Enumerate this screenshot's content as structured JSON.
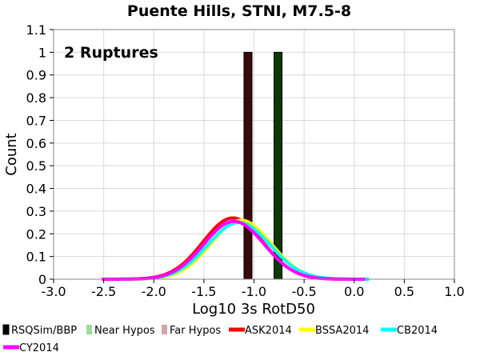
{
  "chart_data": {
    "type": "bar",
    "title": "Puente Hills, STNI, M7.5-8",
    "xlabel": "Log10 3s RotD50",
    "ylabel": "Count",
    "xlim": [
      -3.0,
      1.0
    ],
    "ylim": [
      0,
      1.1
    ],
    "x_ticks": [
      "-3.0",
      "-2.5",
      "-2.0",
      "-1.5",
      "-1.0",
      "-0.5",
      "0.0",
      "0.5",
      "1.0"
    ],
    "y_ticks": [
      "0",
      "0.1",
      "0.2",
      "0.3",
      "0.4",
      "0.5",
      "0.6",
      "0.7",
      "0.8",
      "0.9",
      "1",
      "1.1"
    ],
    "annotation": "2 Ruptures",
    "grid": true,
    "legend_position": "bottom",
    "bars": [
      {
        "x_start": -1.1,
        "x_end": -1.02,
        "count": 1,
        "color": "#3a0a08"
      },
      {
        "x_start": -0.8,
        "x_end": -0.72,
        "count": 1,
        "color": "#0c3a06"
      }
    ],
    "series": [
      {
        "name": "ASK2014",
        "color": "#ff0000",
        "mean": -1.21,
        "sigma": 0.3,
        "amplitude": 0.27,
        "x_range": [
          -2.52,
          0.12
        ]
      },
      {
        "name": "BSSA2014",
        "color": "#ffff00",
        "mean": -1.13,
        "sigma": 0.3,
        "amplitude": 0.26,
        "x_range": [
          -2.52,
          0.14
        ]
      },
      {
        "name": "CB2014",
        "color": "#00ffff",
        "mean": -1.15,
        "sigma": 0.31,
        "amplitude": 0.25,
        "x_range": [
          -2.52,
          0.15
        ]
      },
      {
        "name": "CY2014",
        "color": "#ff00ff",
        "mean": -1.2,
        "sigma": 0.3,
        "amplitude": 0.255,
        "x_range": [
          -2.52,
          0.11
        ]
      }
    ],
    "legend": [
      {
        "label": "RSQSim/BBP",
        "color": "#000000",
        "kind": "box"
      },
      {
        "label": "Near Hypos",
        "color": "#99dd99",
        "kind": "box"
      },
      {
        "label": "Far Hypos",
        "color": "#d4a3a3",
        "kind": "box"
      },
      {
        "label": "ASK2014",
        "color": "#ff0000",
        "kind": "line"
      },
      {
        "label": "BSSA2014",
        "color": "#ffff00",
        "kind": "line"
      },
      {
        "label": "CB2014",
        "color": "#00ffff",
        "kind": "line"
      },
      {
        "label": "CY2014",
        "color": "#ff00ff",
        "kind": "line"
      }
    ]
  }
}
